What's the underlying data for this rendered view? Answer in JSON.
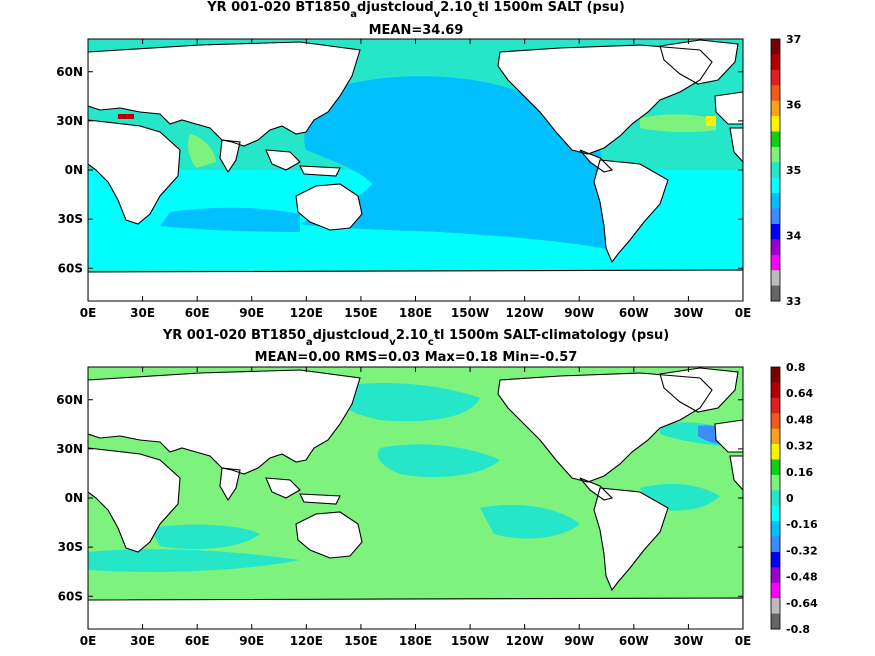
{
  "chart_data": [
    {
      "type": "heatmap",
      "title_parts": [
        "YR 001-020 BT1850",
        "a",
        "djustcloud",
        "v",
        "2.10",
        "c",
        "tl 1500m SALT (psu)"
      ],
      "subtitle": "MEAN=34.69",
      "x_ticks": [
        "0E",
        "30E",
        "60E",
        "90E",
        "120E",
        "150E",
        "180E",
        "150W",
        "120W",
        "90W",
        "60W",
        "30W",
        "0E"
      ],
      "y_ticks": [
        "60N",
        "30N",
        "0N",
        "30S",
        "60S"
      ],
      "xlim": [
        0,
        360
      ],
      "ylim": [
        -80,
        80
      ],
      "colorbar": {
        "range": [
          33,
          37
        ],
        "tick_labels": [
          "37",
          "36",
          "35",
          "34",
          "33"
        ],
        "colors": [
          "#7a0000",
          "#b40000",
          "#e02020",
          "#f25a1a",
          "#f6a21d",
          "#fff200",
          "#11d011",
          "#7df27d",
          "#26e6c9",
          "#00ffff",
          "#00c0ff",
          "#3c8cff",
          "#0000f0",
          "#9900cc",
          "#ff00ff",
          "#bbbbbb",
          "#666666"
        ]
      },
      "regions": {
        "northern_pacific": "#00c0ff",
        "tropical_band": "#00ffff",
        "southern_ocean": "#00ffff",
        "north_atlantic": "#26e6c9",
        "atlantic_max": "#fff200",
        "mediterranean": "#b40000"
      }
    },
    {
      "type": "heatmap",
      "title_parts": [
        "YR 001-020 BT1850",
        "a",
        "djustcloud",
        "v",
        "2.10",
        "c",
        "tl 1500m SALT-climatology (psu)"
      ],
      "subtitle": "MEAN=0.00   RMS=0.03   Max=0.18   Min=-0.57",
      "x_ticks": [
        "0E",
        "30E",
        "60E",
        "90E",
        "120E",
        "150E",
        "180E",
        "150W",
        "120W",
        "90W",
        "60W",
        "30W",
        "0E"
      ],
      "y_ticks": [
        "60N",
        "30N",
        "0N",
        "30S",
        "60S"
      ],
      "xlim": [
        0,
        360
      ],
      "ylim": [
        -80,
        80
      ],
      "colorbar": {
        "range": [
          -0.8,
          0.8
        ],
        "tick_labels": [
          "0.8",
          "0.64",
          "0.48",
          "0.32",
          "0.16",
          "0",
          "-0.16",
          "-0.32",
          "-0.48",
          "-0.64",
          "-0.8"
        ],
        "colors": [
          "#7a0000",
          "#b40000",
          "#e02020",
          "#f25a1a",
          "#f6a21d",
          "#fff200",
          "#11d011",
          "#7df27d",
          "#26e6c9",
          "#00ffff",
          "#00c0ff",
          "#3c8cff",
          "#0000f0",
          "#9900cc",
          "#ff00ff",
          "#bbbbbb",
          "#666666"
        ]
      },
      "regions": {
        "background": "#7df27d",
        "patches": "#26e6c9",
        "atlantic_negative": "#3c8cff"
      }
    }
  ]
}
